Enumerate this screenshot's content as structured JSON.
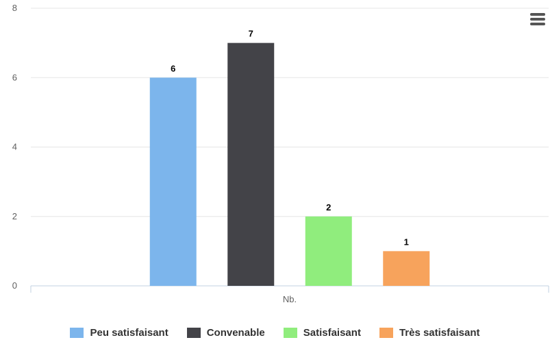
{
  "chart_data": {
    "type": "bar",
    "title": "",
    "xlabel": "",
    "ylabel": "",
    "categories": [
      "Nb."
    ],
    "ylim": [
      0,
      8
    ],
    "yticks": [
      0,
      2,
      4,
      6,
      8
    ],
    "grid": true,
    "legend_position": "bottom",
    "series": [
      {
        "name": "Peu satisfaisant",
        "values": [
          6
        ],
        "color": "#7cb5ec"
      },
      {
        "name": "Convenable",
        "values": [
          7
        ],
        "color": "#434348"
      },
      {
        "name": "Satisfaisant",
        "values": [
          2
        ],
        "color": "#90ed7d"
      },
      {
        "name": "Très satisfaisant",
        "values": [
          1
        ],
        "color": "#f7a35c"
      }
    ]
  },
  "menu": {
    "icon": "hamburger-menu-icon"
  }
}
